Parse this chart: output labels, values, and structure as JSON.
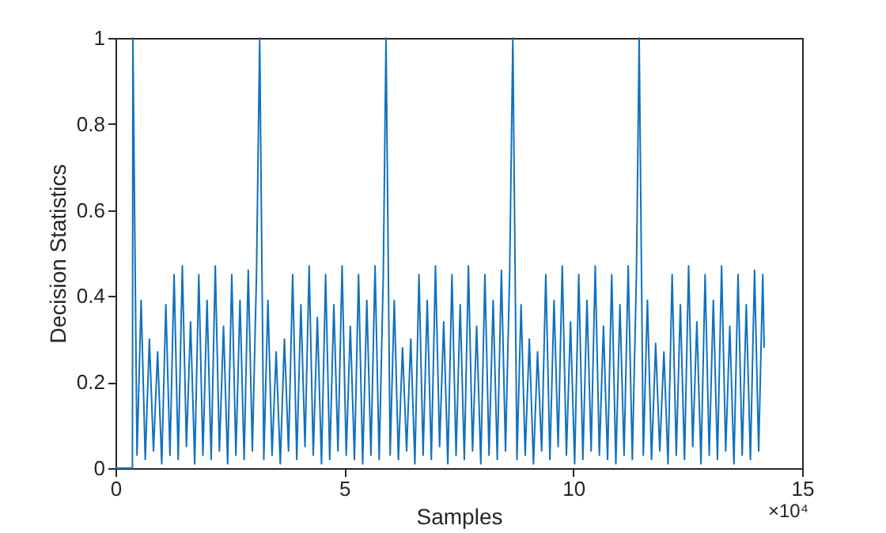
{
  "chart_data": {
    "type": "line",
    "xlabel": "Samples",
    "ylabel": "Decision Statistics",
    "annotations": [
      "×10⁴"
    ],
    "series": [
      {
        "color": "#1171be",
        "x": [
          0,
          0.37,
          0.38,
          0.47,
          0.56,
          0.65,
          0.74,
          0.83,
          0.92,
          1.01,
          1.1,
          1.19,
          1.28,
          1.37,
          1.46,
          1.55,
          1.64,
          1.73,
          1.82,
          1.91,
          2.0,
          2.09,
          2.18,
          2.27,
          2.36,
          2.45,
          2.54,
          2.63,
          2.72,
          2.81,
          2.9,
          2.99,
          3.08,
          3.15,
          3.24,
          3.33,
          3.42,
          3.51,
          3.6,
          3.69,
          3.78,
          3.87,
          3.96,
          4.05,
          4.14,
          4.23,
          4.32,
          4.41,
          4.5,
          4.59,
          4.68,
          4.77,
          4.86,
          4.95,
          5.04,
          5.13,
          5.22,
          5.31,
          5.4,
          5.49,
          5.58,
          5.67,
          5.76,
          5.85,
          5.91,
          6.0,
          6.09,
          6.18,
          6.27,
          6.36,
          6.45,
          6.54,
          6.63,
          6.72,
          6.81,
          6.9,
          6.99,
          7.08,
          7.17,
          7.26,
          7.35,
          7.44,
          7.53,
          7.62,
          7.71,
          7.8,
          7.89,
          7.98,
          8.07,
          8.16,
          8.25,
          8.34,
          8.43,
          8.52,
          8.61,
          8.68,
          8.77,
          8.86,
          8.95,
          9.04,
          9.13,
          9.22,
          9.31,
          9.4,
          9.49,
          9.58,
          9.67,
          9.76,
          9.85,
          9.94,
          10.03,
          10.12,
          10.21,
          10.3,
          10.39,
          10.48,
          10.57,
          10.66,
          10.75,
          10.84,
          10.93,
          11.02,
          11.11,
          11.2,
          11.29,
          11.38,
          11.44,
          11.53,
          11.62,
          11.71,
          11.8,
          11.89,
          11.98,
          12.07,
          12.16,
          12.25,
          12.34,
          12.43,
          12.52,
          12.61,
          12.7,
          12.79,
          12.88,
          12.97,
          13.06,
          13.15,
          13.24,
          13.33,
          13.42,
          13.51,
          13.6,
          13.69,
          13.78,
          13.87,
          13.96,
          14.05,
          14.14,
          14.17
        ],
        "values": [
          0,
          0,
          1,
          0.03,
          0.39,
          0.02,
          0.3,
          0.04,
          0.27,
          0.01,
          0.38,
          0.03,
          0.45,
          0.02,
          0.47,
          0.05,
          0.34,
          0.01,
          0.45,
          0.03,
          0.39,
          0.02,
          0.47,
          0.04,
          0.33,
          0.01,
          0.45,
          0.03,
          0.39,
          0.02,
          0.46,
          0.04,
          0.45,
          1,
          0.02,
          0.39,
          0.03,
          0.27,
          0.01,
          0.3,
          0.04,
          0.45,
          0.02,
          0.38,
          0.05,
          0.47,
          0.03,
          0.35,
          0.01,
          0.45,
          0.02,
          0.38,
          0.04,
          0.47,
          0.03,
          0.33,
          0.02,
          0.45,
          0.01,
          0.39,
          0.03,
          0.47,
          0.02,
          0.45,
          1,
          0.03,
          0.39,
          0.02,
          0.28,
          0.04,
          0.3,
          0.01,
          0.45,
          0.03,
          0.39,
          0.02,
          0.47,
          0.05,
          0.34,
          0.01,
          0.45,
          0.03,
          0.38,
          0.02,
          0.47,
          0.04,
          0.33,
          0.01,
          0.45,
          0.03,
          0.39,
          0.02,
          0.46,
          0.04,
          0.45,
          1,
          0.02,
          0.38,
          0.03,
          0.3,
          0.01,
          0.27,
          0.04,
          0.45,
          0.02,
          0.39,
          0.05,
          0.47,
          0.03,
          0.34,
          0.01,
          0.45,
          0.02,
          0.39,
          0.04,
          0.47,
          0.03,
          0.33,
          0.02,
          0.45,
          0.01,
          0.38,
          0.03,
          0.47,
          0.02,
          0.45,
          1,
          0.03,
          0.39,
          0.02,
          0.29,
          0.04,
          0.27,
          0.01,
          0.45,
          0.03,
          0.38,
          0.02,
          0.47,
          0.05,
          0.34,
          0.01,
          0.45,
          0.03,
          0.39,
          0.02,
          0.47,
          0.04,
          0.33,
          0.01,
          0.45,
          0.03,
          0.38,
          0.02,
          0.46,
          0.04,
          0.45,
          0.28
        ]
      }
    ],
    "xlim": [
      0,
      15
    ],
    "xticks": [
      0,
      5,
      10,
      15
    ],
    "ylim": [
      0,
      1
    ],
    "yticks": [
      0,
      0.2,
      0.4,
      0.6,
      0.8,
      1
    ],
    "grid": false,
    "marker": "none",
    "line_style": "solid"
  }
}
